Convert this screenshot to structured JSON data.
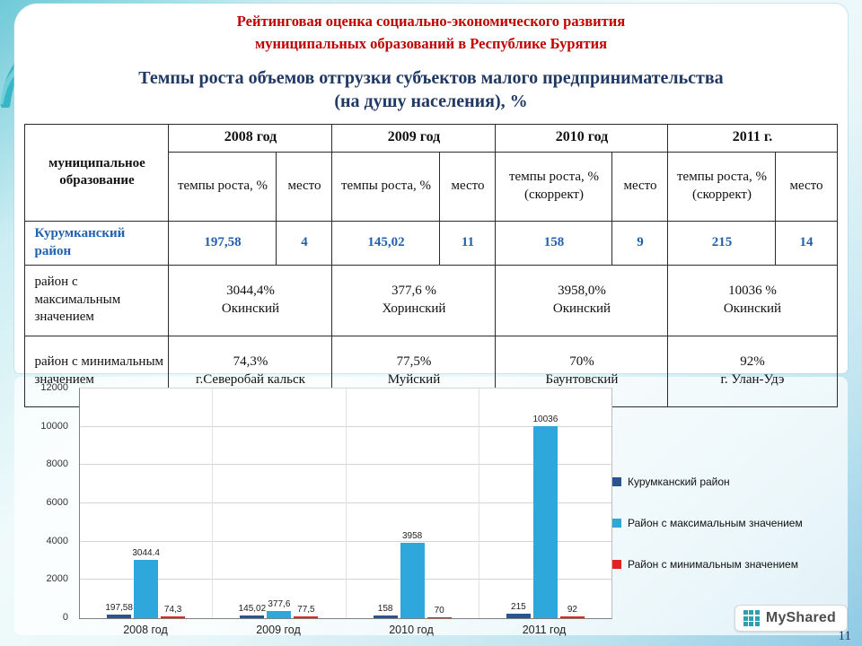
{
  "header": {
    "title_line1": "Рейтинговая оценка социально-экономического развития",
    "title_line2": "муниципальных образований в Республике Бурятия",
    "subtitle_line1": "Темпы роста объемов отгрузки субъектов малого предпринимательства",
    "subtitle_line2": "(на душу населения), %"
  },
  "table": {
    "col0_header": "муниципальное образование",
    "year_headers": [
      "2008 год",
      "2009 год",
      "2010 год",
      "2011 г."
    ],
    "sub_headers": [
      {
        "rate": "темпы роста, %",
        "place": "место"
      },
      {
        "rate": "темпы роста, %",
        "place": "место"
      },
      {
        "rate": "темпы роста, % (скоррект)",
        "place": "место"
      },
      {
        "rate": "темпы роста, % (скоррект)",
        "place": "место"
      }
    ],
    "kurumkan_row": {
      "label": "Курумканский район",
      "values": [
        "197,58",
        "4",
        "145,02",
        "11",
        "158",
        "9",
        "215",
        "14"
      ]
    },
    "max_row": {
      "label": "район с максимальным значением",
      "cells": [
        {
          "value": "3044,4%",
          "name": "Окинский"
        },
        {
          "value": "377,6 %",
          "name": "Хоринский"
        },
        {
          "value": "3958,0%",
          "name": "Окинский"
        },
        {
          "value": "10036 %",
          "name": "Окинский"
        }
      ]
    },
    "min_row": {
      "label": "район с минимальным значением",
      "cells": [
        {
          "value": "74,3%",
          "name": "г.Северобай кальск"
        },
        {
          "value": "77,5%",
          "name": "Муйский"
        },
        {
          "value": "70%",
          "name": "Баунтовский"
        },
        {
          "value": "92%",
          "name": "г. Улан-Удэ"
        }
      ]
    }
  },
  "chart_data": {
    "type": "bar",
    "categories": [
      "2008 год",
      "2009 год",
      "2010 год",
      "2011 год"
    ],
    "series": [
      {
        "name": "Курумканский район",
        "color": "#2a5490",
        "values": [
          197.58,
          145.02,
          158,
          215
        ],
        "labels": [
          "197,58",
          "145,02",
          "158",
          "215"
        ]
      },
      {
        "name": "Район с максимальным значением",
        "color": "#2ea8dc",
        "values": [
          3044.4,
          377.6,
          3958,
          10036
        ],
        "labels": [
          "3044.4",
          "377,6",
          "3958",
          "10036"
        ]
      },
      {
        "name": "Район с минимальным значением",
        "color": "#e52222",
        "values": [
          74.3,
          77.5,
          70,
          92
        ],
        "labels": [
          "74,3",
          "77,5",
          "70",
          "92"
        ]
      }
    ],
    "title": "",
    "xlabel": "",
    "ylabel": "",
    "ylim": [
      0,
      12000
    ],
    "ytick_step": 2000,
    "grid": true,
    "legend_position": "right"
  },
  "footer": {
    "page_number": "11",
    "logo_text": "MyShared"
  }
}
